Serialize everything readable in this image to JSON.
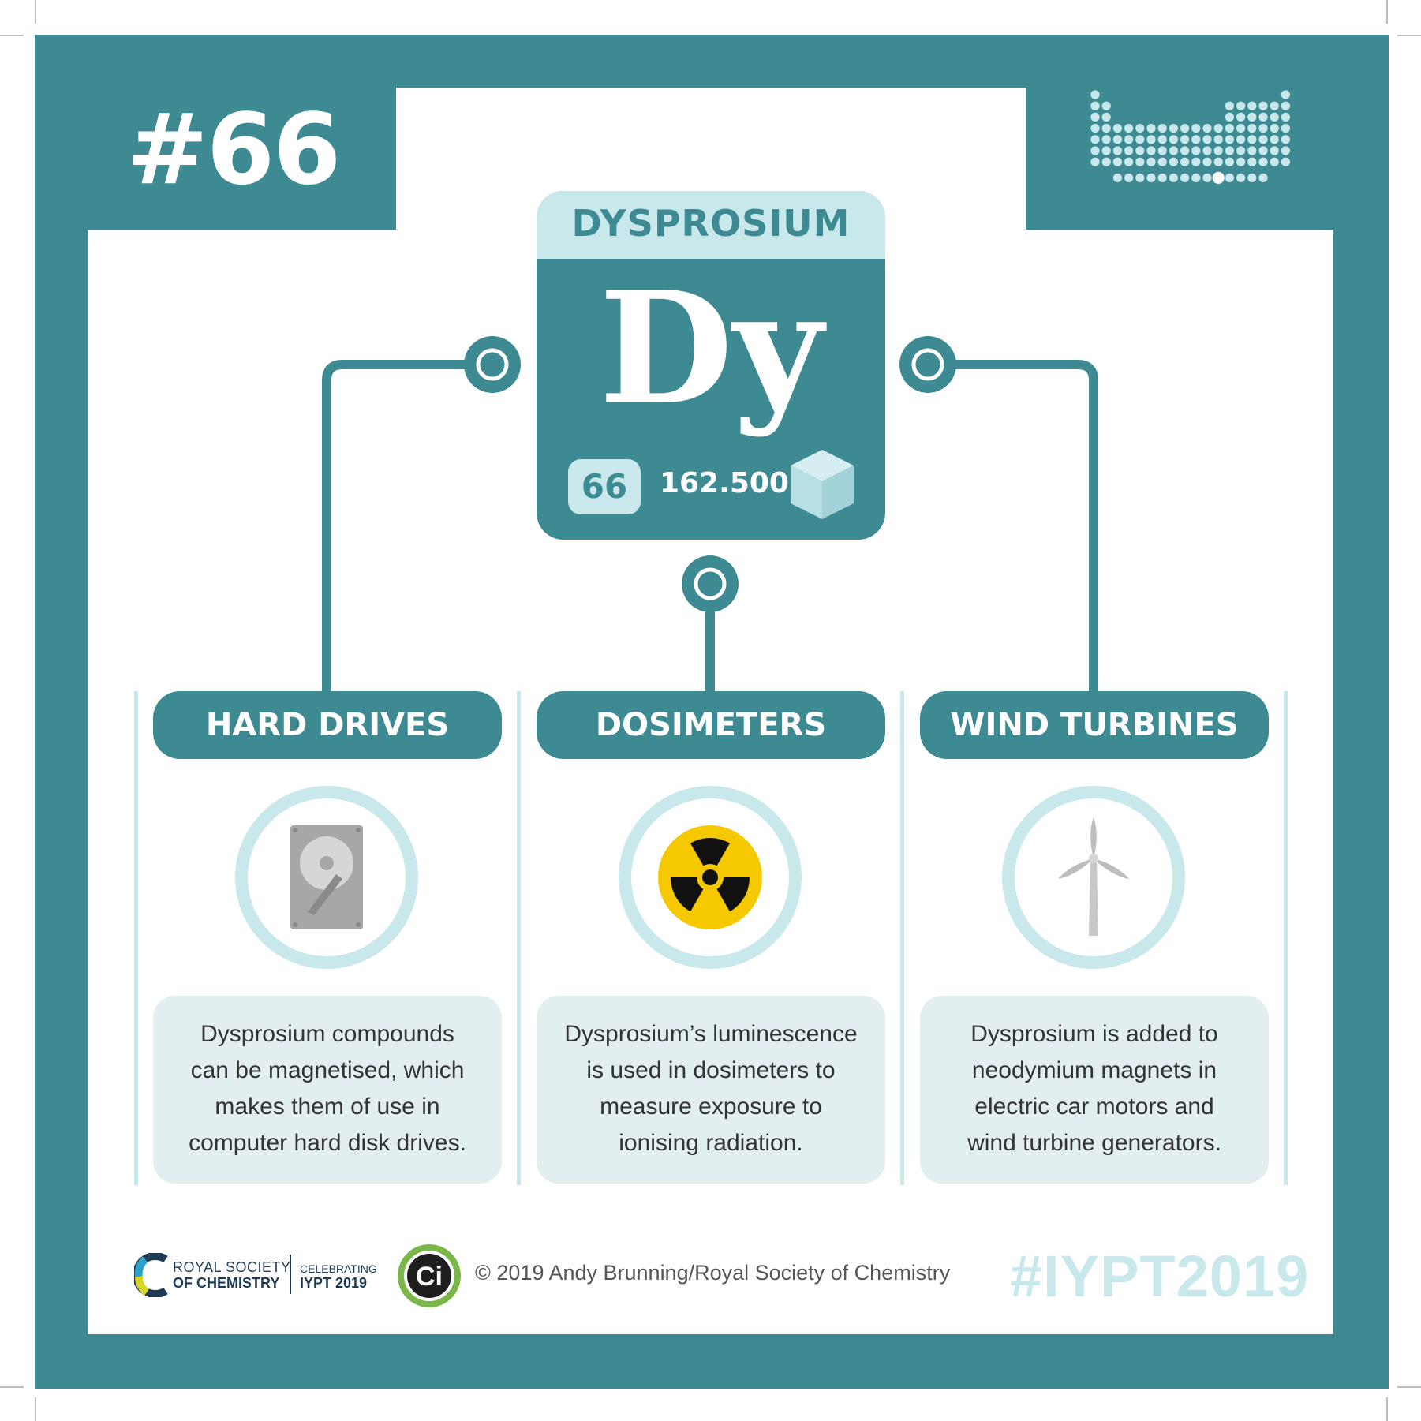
{
  "header": {
    "element_index": "#66"
  },
  "element": {
    "name": "DYSPROSIUM",
    "symbol": "Dy",
    "atomic_number": "66",
    "atomic_mass": "162.500"
  },
  "uses": [
    {
      "title": "HARD DRIVES",
      "icon": "hard-drive-icon",
      "description": [
        "Dysprosium compounds",
        "can be magnetised, which",
        "makes them of use in",
        "computer hard disk drives."
      ]
    },
    {
      "title": "DOSIMETERS",
      "icon": "radiation-icon",
      "description": [
        "Dysprosium’s luminescence",
        "is used in dosimeters to",
        "measure exposure to",
        "ionising radiation."
      ]
    },
    {
      "title": "WIND TURBINES",
      "icon": "wind-turbine-icon",
      "description": [
        "Dysprosium is added to",
        "neodymium magnets in",
        "electric car motors and",
        "wind turbine generators."
      ]
    }
  ],
  "footer": {
    "rsc_line1": "ROYAL SOCIETY",
    "rsc_line2": "OF CHEMISTRY",
    "iypt_line1": "CELEBRATING",
    "iypt_line2": "IYPT 2019",
    "ci_label": "Ci",
    "copyright": "© 2019 Andy Brunning/Royal Society of Chemistry",
    "hashtag": "#IYPT2019"
  },
  "colors": {
    "teal": "#3d8a93",
    "light_teal": "#c8e8ec",
    "box_bg": "#e3eef0",
    "radiation_yellow": "#f5c800",
    "ci_green": "#7ab648"
  }
}
